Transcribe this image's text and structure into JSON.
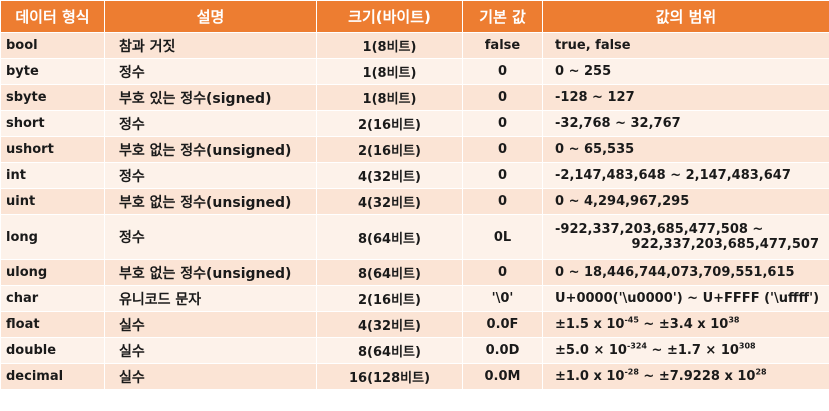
{
  "headers": {
    "type": "데이터 형식",
    "desc": "설명",
    "size": "크기(바이트)",
    "default": "기본 값",
    "range": "값의 범위"
  },
  "rows": [
    {
      "type": "bool",
      "desc": "참과 거짓",
      "size": "1(8비트)",
      "default": "false",
      "range": "true, false"
    },
    {
      "type": "byte",
      "desc": "정수",
      "size": "1(8비트)",
      "default": "0",
      "range": "0 ~ 255"
    },
    {
      "type": "sbyte",
      "desc": "부호 있는 정수(signed)",
      "size": "1(8비트)",
      "default": "0",
      "range": "-128 ~ 127"
    },
    {
      "type": "short",
      "desc": "정수",
      "size": "2(16비트)",
      "default": "0",
      "range": "-32,768 ~ 32,767"
    },
    {
      "type": "ushort",
      "desc": "부호 없는 정수(unsigned)",
      "size": "2(16비트)",
      "default": "0",
      "range": "0 ~ 65,535"
    },
    {
      "type": "int",
      "desc": "정수",
      "size": "4(32비트)",
      "default": "0",
      "range": "-2,147,483,648 ~ 2,147,483,647"
    },
    {
      "type": "uint",
      "desc": "부호 없는 정수(unsigned)",
      "size": "4(32비트)",
      "default": "0",
      "range": "0 ~ 4,294,967,295"
    },
    {
      "type": "long",
      "desc": "정수",
      "size": "8(64비트)",
      "default": "0L",
      "range_line1": "-922,337,203,685,477,508 ~",
      "range_line2": "922,337,203,685,477,507"
    },
    {
      "type": "ulong",
      "desc": "부호 없는 정수(unsigned)",
      "size": "8(64비트)",
      "default": "0",
      "range": "0 ~ 18,446,744,073,709,551,615"
    },
    {
      "type": "char",
      "desc": "유니코드 문자",
      "size": "2(16비트)",
      "default": "'\\0'",
      "range": "U+0000('\\u0000') ~ U+FFFF ('\\uffff')"
    },
    {
      "type": "float",
      "desc": "실수",
      "size": "4(32비트)",
      "default": "0.0F",
      "range_a": "±1.5 x 10",
      "range_a_exp": "-45",
      "range_sep": " ~ ",
      "range_b": "±3.4 x 10",
      "range_b_exp": "38"
    },
    {
      "type": "double",
      "desc": "실수",
      "size": "8(64비트)",
      "default": "0.0D",
      "range_a": "±5.0 × 10",
      "range_a_exp": "-324",
      "range_sep": " ~ ",
      "range_b": "±1.7 × 10",
      "range_b_exp": "308"
    },
    {
      "type": "decimal",
      "desc": "실수",
      "size": "16(128비트)",
      "default": "0.0M",
      "range_a": "±1.0 x 10",
      "range_a_exp": "-28",
      "range_sep": " ~ ",
      "range_b": "±7.9228 x 10",
      "range_b_exp": "28"
    }
  ]
}
